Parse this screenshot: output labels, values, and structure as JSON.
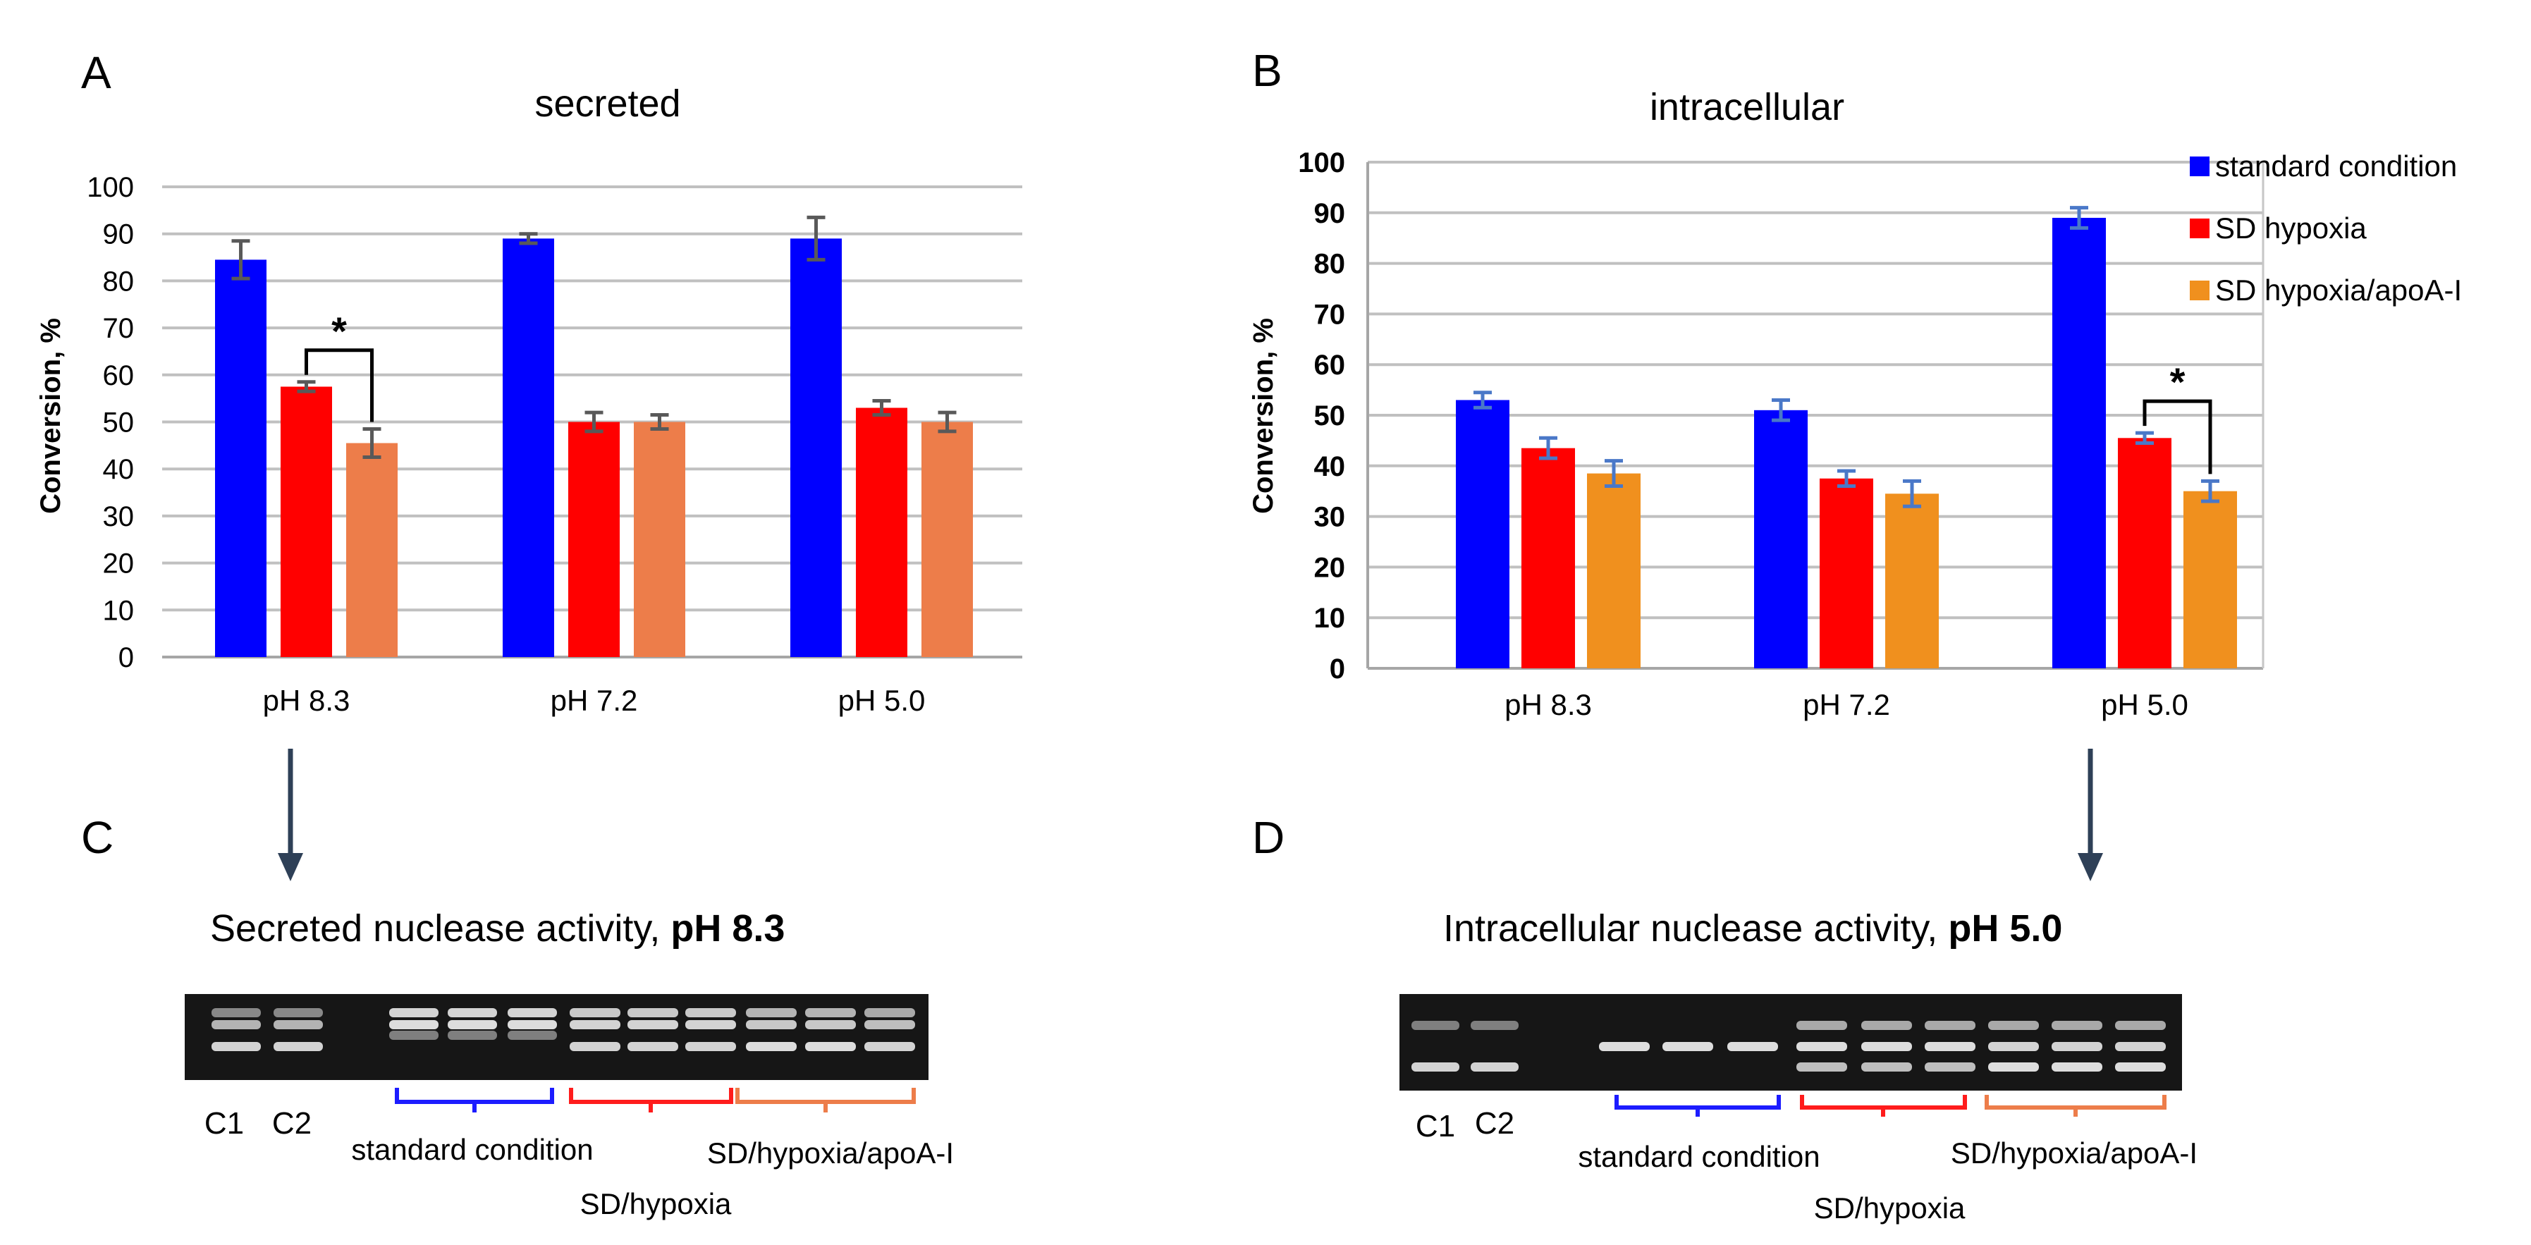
{
  "colors": {
    "standard": "#0000ff",
    "hypoxia": "#ff0000",
    "apoa_secreted": "#ed7d4a",
    "apoa_intracellular": "#f0901e",
    "grid": "#c0c0c0",
    "error_secreted": "#595959",
    "error_intracellular": "#4a78c8",
    "arrow": "#2e4057",
    "gel_bg": "#161616",
    "band": "#e8e8e8"
  },
  "chart_data": [
    {
      "panel": "A",
      "type": "bar",
      "title": "secreted",
      "xlabel": "",
      "ylabel": "Conversion, %",
      "ylim": [
        0,
        100
      ],
      "yticks": [
        0,
        10,
        20,
        30,
        40,
        50,
        60,
        70,
        80,
        90,
        100
      ],
      "grid": true,
      "legend": "none",
      "categories": [
        "pH 8.3",
        "pH 7.2",
        "pH 5.0"
      ],
      "series": [
        {
          "name": "standard condition",
          "values": [
            84.5,
            89,
            89
          ],
          "errors": [
            4,
            1,
            4.5
          ]
        },
        {
          "name": "SD hypoxia",
          "values": [
            57.5,
            50,
            53
          ],
          "errors": [
            1,
            2,
            1.5
          ]
        },
        {
          "name": "SD hypoxia/apoA-I",
          "values": [
            45.5,
            50,
            50
          ],
          "errors": [
            3,
            1.5,
            2
          ]
        }
      ],
      "annotations": [
        {
          "text": "*",
          "category": "pH 8.3",
          "between": [
            "SD hypoxia",
            "SD hypoxia/apoA-I"
          ]
        }
      ]
    },
    {
      "panel": "B",
      "type": "bar",
      "title": "intracellular",
      "xlabel": "",
      "ylabel": "Conversion, %",
      "ylim": [
        0,
        100
      ],
      "yticks": [
        0,
        10,
        20,
        30,
        40,
        50,
        60,
        70,
        80,
        90,
        100
      ],
      "grid": true,
      "legend": "top-right",
      "categories": [
        "pH 8.3",
        "pH 7.2",
        "pH 5.0"
      ],
      "series": [
        {
          "name": "standard condition",
          "values": [
            53,
            51,
            89
          ],
          "errors": [
            1.5,
            2,
            2
          ]
        },
        {
          "name": "SD hypoxia",
          "values": [
            43.5,
            37.5,
            45.5
          ],
          "errors": [
            2,
            1.5,
            1
          ]
        },
        {
          "name": "SD hypoxia/apoA-I",
          "values": [
            38.5,
            34.5,
            35
          ],
          "errors": [
            2.5,
            2.5,
            2
          ]
        }
      ],
      "annotations": [
        {
          "text": "*",
          "category": "pH 5.0",
          "between": [
            "SD hypoxia",
            "SD hypoxia/apoA-I"
          ]
        }
      ]
    }
  ],
  "gels": [
    {
      "panel": "C",
      "title_prefix": "Secreted nuclease activity, ",
      "title_bold": "pH 8.3",
      "control_labels": [
        "C1",
        "C2"
      ],
      "group_labels": [
        "standard condition",
        "SD/hypoxia",
        "SD/hypoxia/apoA-I"
      ]
    },
    {
      "panel": "D",
      "title_prefix": "Intracellular nuclease activity, ",
      "title_bold": "pH 5.0",
      "control_labels": [
        "C1",
        "C2"
      ],
      "group_labels": [
        "standard condition",
        "SD/hypoxia",
        "SD/hypoxia/apoA-I"
      ]
    }
  ]
}
